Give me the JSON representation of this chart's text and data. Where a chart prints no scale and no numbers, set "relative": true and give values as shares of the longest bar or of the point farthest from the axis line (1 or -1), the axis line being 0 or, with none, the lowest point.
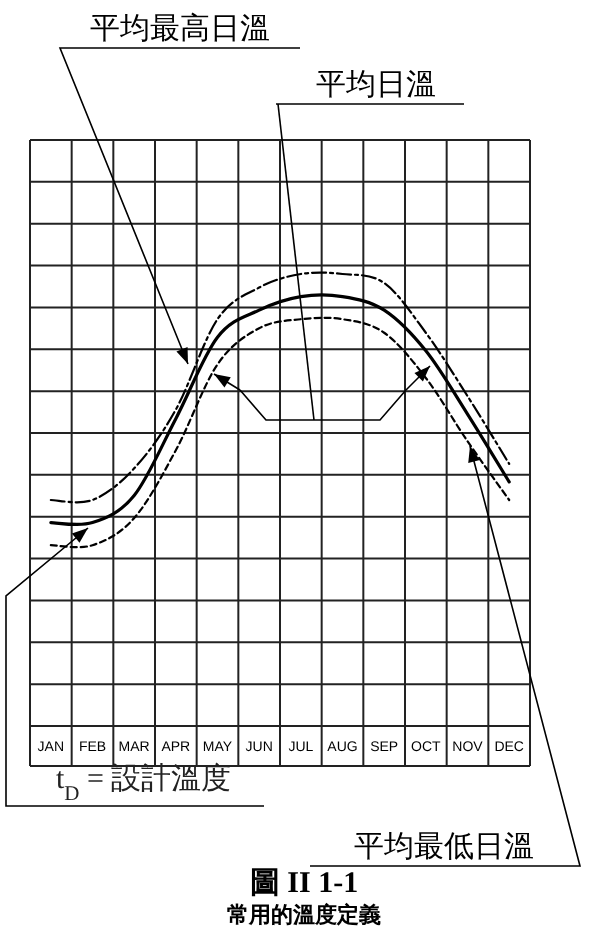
{
  "chart_data": {
    "type": "line",
    "relative": true,
    "grid": true,
    "title": "圖 II 1-1",
    "subtitle": "常用的溫度定義",
    "categories": [
      "JAN",
      "FEB",
      "MAR",
      "APR",
      "MAY",
      "JUN",
      "JUL",
      "AUG",
      "SEP",
      "OCT",
      "NOV",
      "DEC"
    ],
    "series": [
      {
        "name": "平均最高日溫",
        "color": "#000000",
        "line_style": "dashed",
        "values": [
          0.5,
          0.5,
          0.57,
          0.7,
          0.9,
          0.97,
          1.0,
          1.0,
          0.98,
          0.87,
          0.73,
          0.58
        ]
      },
      {
        "name": "平均日溫",
        "color": "#000000",
        "line_style": "solid",
        "values": [
          0.45,
          0.45,
          0.51,
          0.68,
          0.86,
          0.92,
          0.95,
          0.95,
          0.92,
          0.83,
          0.69,
          0.54
        ]
      },
      {
        "name": "平均最低日溫",
        "color": "#000000",
        "line_style": "dotted",
        "values": [
          0.4,
          0.4,
          0.46,
          0.61,
          0.8,
          0.88,
          0.9,
          0.9,
          0.87,
          0.77,
          0.63,
          0.5
        ]
      }
    ],
    "annotations": [
      "t$_{D}$ = 設計溫度"
    ]
  }
}
